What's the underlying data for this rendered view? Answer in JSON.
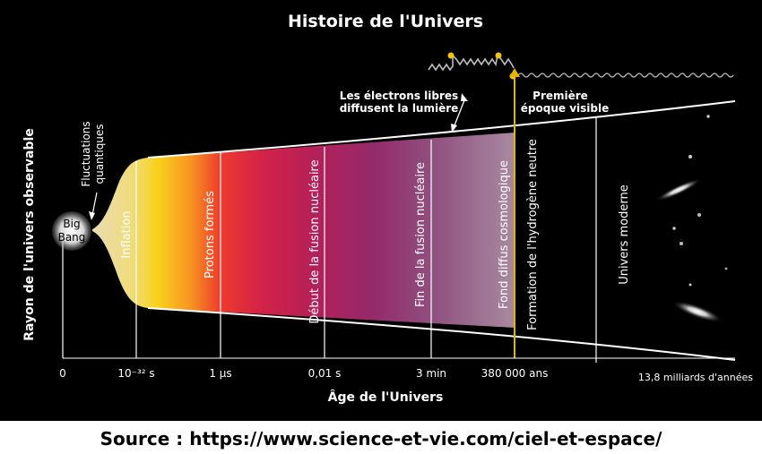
{
  "title": "Histoire de l'Univers",
  "y_axis_label": "Rayon de l'univers observable",
  "x_axis_label": "Âge de l'Univers",
  "big_bang": [
    "Big",
    "Bang"
  ],
  "fluctuations": [
    "Fluctuations",
    "quantiques"
  ],
  "ticks": [
    "0",
    "10⁻³² s",
    "1 µs",
    "0,01 s",
    "3 min",
    "380 000 ans",
    "13,8 milliards d'années"
  ],
  "stages": {
    "inflation": "Inflation",
    "protons": "Protons formés",
    "fusion_start": "Début de la fusion nucléaire",
    "fusion_end": "Fin de la fusion nucléaire",
    "cmb": "Fond diffus cosmologique",
    "hydrogen": "Formation de l'hydrogène neutre",
    "modern": "Univers moderne"
  },
  "annotations": {
    "electrons": [
      "Les électrons libres",
      "diffusent la lumière"
    ],
    "first_epoch": [
      "Première",
      "époque visible"
    ]
  },
  "source": "Source : https://www.science-et-vie.com/ciel-et-espace/"
}
